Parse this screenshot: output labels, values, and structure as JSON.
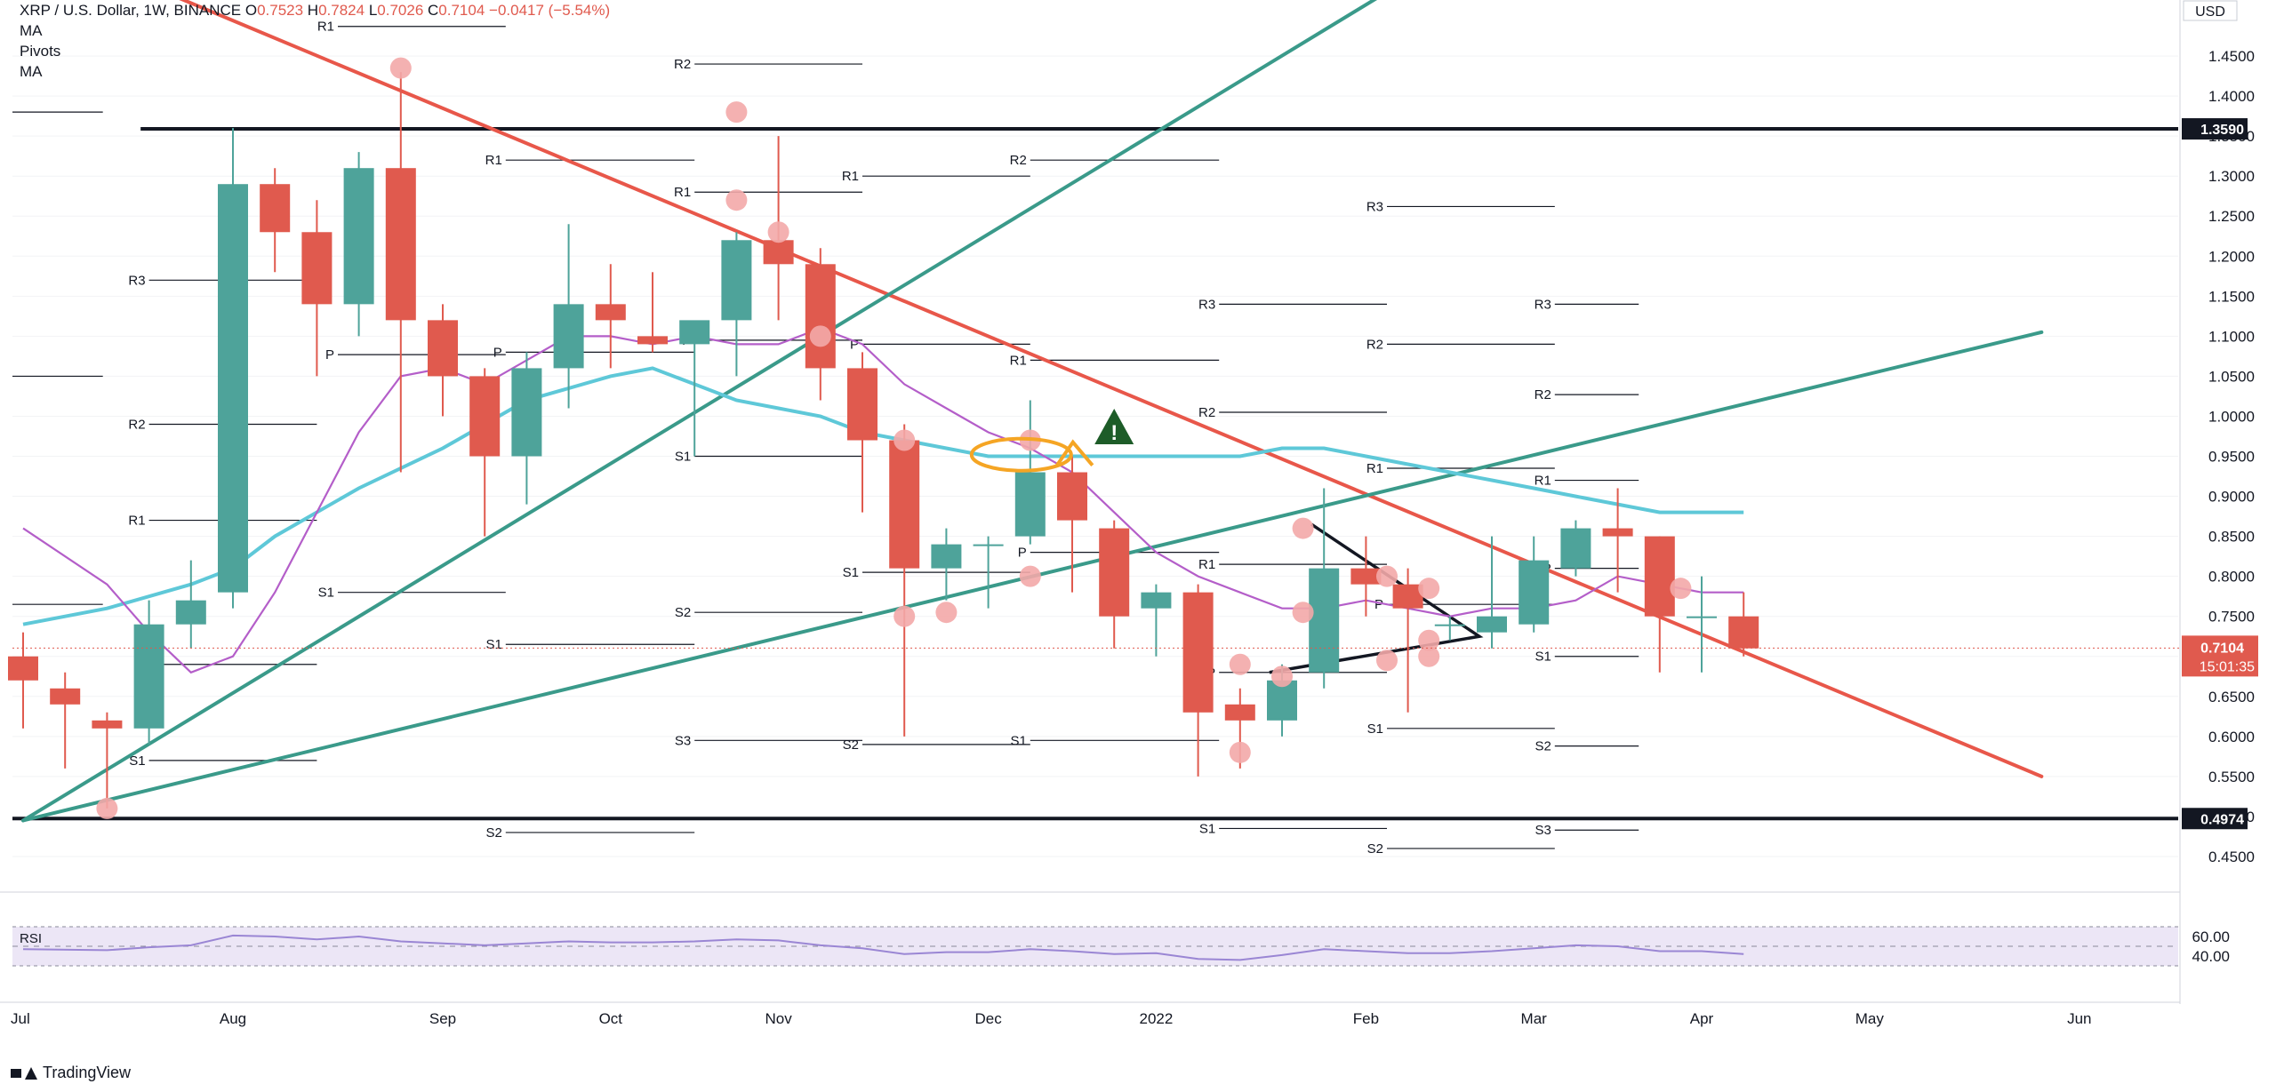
{
  "header": {
    "symbol": "XRP / U.S. Dollar, 1W, BINANCE",
    "open_label": "O",
    "open": "0.7523",
    "high_label": "H",
    "high": "0.7824",
    "low_label": "L",
    "low": "0.7026",
    "close_label": "C",
    "close": "0.7104",
    "change": "−0.0417 (−5.54%)",
    "indicators": [
      "MA",
      "Pivots",
      "MA"
    ]
  },
  "currency_button": "USD",
  "brand": "TradingView",
  "colors": {
    "up": "#4ea39a",
    "down": "#e05a4e",
    "ma_fast": "#b45ec9",
    "ma_slow": "#5ec8d8",
    "trend_red": "#e8574a",
    "trend_green": "#3a9a8a",
    "rsi": "#9a86d4",
    "rsi_bg": "#ece6f6",
    "marker": "#f3a8a8",
    "annotation": "#f5a524",
    "warning": "#1d5c28"
  },
  "chart_data": {
    "type": "candlestick",
    "y_axis": {
      "min": 0.41,
      "max": 1.52,
      "scale": "linear",
      "ticks": [
        "1.4500",
        "1.4000",
        "1.3500",
        "1.3000",
        "1.2500",
        "1.2000",
        "1.1500",
        "1.1000",
        "1.0500",
        "1.0000",
        "0.9500",
        "0.9000",
        "0.8500",
        "0.8000",
        "0.7500",
        "0.7000",
        "0.6500",
        "0.6000",
        "0.5500",
        "0.5000",
        "0.4500"
      ],
      "tick_values": [
        1.45,
        1.4,
        1.35,
        1.3,
        1.25,
        1.2,
        1.15,
        1.1,
        1.05,
        1.0,
        0.95,
        0.9,
        0.85,
        0.8,
        0.75,
        0.7,
        0.65,
        0.6,
        0.55,
        0.5,
        0.45
      ]
    },
    "x_axis": {
      "labels": [
        "Jul",
        "Aug",
        "Sep",
        "Oct",
        "Nov",
        "Dec",
        "2022",
        "Feb",
        "Mar",
        "Apr",
        "May",
        "Jun"
      ],
      "label_weeks": [
        0,
        5,
        10,
        14,
        18,
        23,
        27,
        32,
        36,
        40,
        44,
        49
      ]
    },
    "candles": [
      {
        "o": 0.7,
        "h": 0.73,
        "l": 0.61,
        "c": 0.67
      },
      {
        "o": 0.66,
        "h": 0.68,
        "l": 0.56,
        "c": 0.64
      },
      {
        "o": 0.62,
        "h": 0.63,
        "l": 0.51,
        "c": 0.61
      },
      {
        "o": 0.61,
        "h": 0.77,
        "l": 0.59,
        "c": 0.74
      },
      {
        "o": 0.74,
        "h": 0.82,
        "l": 0.71,
        "c": 0.77
      },
      {
        "o": 0.78,
        "h": 1.36,
        "l": 0.76,
        "c": 1.29
      },
      {
        "o": 1.29,
        "h": 1.31,
        "l": 1.18,
        "c": 1.23
      },
      {
        "o": 1.23,
        "h": 1.27,
        "l": 1.05,
        "c": 1.14
      },
      {
        "o": 1.14,
        "h": 1.33,
        "l": 1.1,
        "c": 1.31
      },
      {
        "o": 1.31,
        "h": 1.43,
        "l": 0.93,
        "c": 1.12
      },
      {
        "o": 1.12,
        "h": 1.14,
        "l": 1.0,
        "c": 1.05
      },
      {
        "o": 1.05,
        "h": 1.06,
        "l": 0.85,
        "c": 0.95
      },
      {
        "o": 0.95,
        "h": 1.08,
        "l": 0.89,
        "c": 1.06
      },
      {
        "o": 1.06,
        "h": 1.24,
        "l": 1.01,
        "c": 1.14
      },
      {
        "o": 1.14,
        "h": 1.19,
        "l": 1.06,
        "c": 1.12
      },
      {
        "o": 1.1,
        "h": 1.18,
        "l": 1.08,
        "c": 1.09
      },
      {
        "o": 1.09,
        "h": 1.11,
        "l": 0.95,
        "c": 1.12
      },
      {
        "o": 1.12,
        "h": 1.23,
        "l": 1.05,
        "c": 1.22
      },
      {
        "o": 1.22,
        "h": 1.35,
        "l": 1.12,
        "c": 1.19
      },
      {
        "o": 1.19,
        "h": 1.21,
        "l": 1.02,
        "c": 1.06
      },
      {
        "o": 1.06,
        "h": 1.08,
        "l": 0.88,
        "c": 0.97
      },
      {
        "o": 0.97,
        "h": 0.99,
        "l": 0.6,
        "c": 0.81
      },
      {
        "o": 0.81,
        "h": 0.86,
        "l": 0.77,
        "c": 0.84
      },
      {
        "o": 0.84,
        "h": 0.85,
        "l": 0.76,
        "c": 0.84
      },
      {
        "o": 0.85,
        "h": 1.02,
        "l": 0.84,
        "c": 0.93
      },
      {
        "o": 0.93,
        "h": 0.95,
        "l": 0.78,
        "c": 0.87
      },
      {
        "o": 0.86,
        "h": 0.87,
        "l": 0.71,
        "c": 0.75
      },
      {
        "o": 0.76,
        "h": 0.79,
        "l": 0.7,
        "c": 0.78
      },
      {
        "o": 0.78,
        "h": 0.79,
        "l": 0.55,
        "c": 0.63
      },
      {
        "o": 0.64,
        "h": 0.66,
        "l": 0.56,
        "c": 0.62
      },
      {
        "o": 0.62,
        "h": 0.69,
        "l": 0.6,
        "c": 0.67
      },
      {
        "o": 0.68,
        "h": 0.91,
        "l": 0.66,
        "c": 0.81
      },
      {
        "o": 0.81,
        "h": 0.85,
        "l": 0.75,
        "c": 0.79
      },
      {
        "o": 0.79,
        "h": 0.81,
        "l": 0.63,
        "c": 0.76
      },
      {
        "o": 0.74,
        "h": 0.75,
        "l": 0.72,
        "c": 0.74
      },
      {
        "o": 0.73,
        "h": 0.85,
        "l": 0.71,
        "c": 0.75
      },
      {
        "o": 0.74,
        "h": 0.85,
        "l": 0.73,
        "c": 0.82
      },
      {
        "o": 0.81,
        "h": 0.87,
        "l": 0.8,
        "c": 0.86
      },
      {
        "o": 0.86,
        "h": 0.91,
        "l": 0.78,
        "c": 0.85
      },
      {
        "o": 0.85,
        "h": 0.85,
        "l": 0.68,
        "c": 0.75
      },
      {
        "o": 0.75,
        "h": 0.8,
        "l": 0.68,
        "c": 0.75
      },
      {
        "o": 0.75,
        "h": 0.78,
        "l": 0.7,
        "c": 0.71
      }
    ],
    "ma_fast": [
      [
        0,
        0.86
      ],
      [
        2,
        0.79
      ],
      [
        3,
        0.73
      ],
      [
        4,
        0.68
      ],
      [
        5,
        0.7
      ],
      [
        6,
        0.78
      ],
      [
        7,
        0.88
      ],
      [
        8,
        0.98
      ],
      [
        9,
        1.05
      ],
      [
        10,
        1.06
      ],
      [
        11,
        1.04
      ],
      [
        12,
        1.07
      ],
      [
        13,
        1.1
      ],
      [
        14,
        1.1
      ],
      [
        15,
        1.09
      ],
      [
        16,
        1.1
      ],
      [
        17,
        1.09
      ],
      [
        18,
        1.09
      ],
      [
        19,
        1.11
      ],
      [
        20,
        1.09
      ],
      [
        21,
        1.04
      ],
      [
        22,
        1.01
      ],
      [
        23,
        0.98
      ],
      [
        24,
        0.96
      ],
      [
        25,
        0.93
      ],
      [
        26,
        0.88
      ],
      [
        27,
        0.83
      ],
      [
        28,
        0.8
      ],
      [
        29,
        0.78
      ],
      [
        30,
        0.76
      ],
      [
        31,
        0.76
      ],
      [
        32,
        0.77
      ],
      [
        33,
        0.76
      ],
      [
        34,
        0.75
      ],
      [
        35,
        0.76
      ],
      [
        36,
        0.76
      ],
      [
        37,
        0.77
      ],
      [
        38,
        0.8
      ],
      [
        39,
        0.79
      ],
      [
        40,
        0.78
      ],
      [
        41,
        0.78
      ]
    ],
    "ma_slow": [
      [
        0,
        0.74
      ],
      [
        2,
        0.76
      ],
      [
        4,
        0.79
      ],
      [
        5,
        0.81
      ],
      [
        6,
        0.85
      ],
      [
        8,
        0.91
      ],
      [
        10,
        0.96
      ],
      [
        12,
        1.02
      ],
      [
        14,
        1.05
      ],
      [
        15,
        1.06
      ],
      [
        16,
        1.04
      ],
      [
        17,
        1.02
      ],
      [
        18,
        1.01
      ],
      [
        19,
        1.0
      ],
      [
        20,
        0.98
      ],
      [
        21,
        0.97
      ],
      [
        22,
        0.96
      ],
      [
        23,
        0.95
      ],
      [
        24,
        0.95
      ],
      [
        25,
        0.95
      ],
      [
        26,
        0.95
      ],
      [
        27,
        0.95
      ],
      [
        28,
        0.95
      ],
      [
        29,
        0.95
      ],
      [
        30,
        0.96
      ],
      [
        31,
        0.96
      ],
      [
        32,
        0.95
      ],
      [
        33,
        0.94
      ],
      [
        34,
        0.93
      ],
      [
        35,
        0.92
      ],
      [
        36,
        0.91
      ],
      [
        37,
        0.9
      ],
      [
        38,
        0.89
      ],
      [
        39,
        0.88
      ],
      [
        40,
        0.88
      ],
      [
        41,
        0.88
      ]
    ],
    "horizontal_levels": [
      {
        "value": 1.359,
        "label": "1.3590"
      },
      {
        "value": 0.4974,
        "label": "0.4974"
      }
    ],
    "last_price": {
      "value": "0.7104",
      "countdown": "15:01:35"
    },
    "trend_lines": [
      {
        "color": "trend_red",
        "from": [
          2,
          1.56
        ],
        "to": [
          48.1,
          0.55
        ]
      },
      {
        "color": "trend_green",
        "from": [
          0,
          0.495
        ],
        "to": [
          32.5,
          1.53
        ]
      },
      {
        "color": "trend_green",
        "from": [
          0,
          0.495
        ],
        "to": [
          48.1,
          1.105
        ]
      }
    ],
    "triangle": [
      [
        30.7,
        0.865
      ],
      [
        34.7,
        0.725
      ],
      [
        29.7,
        0.68
      ]
    ],
    "pivots": [
      {
        "label": "R1",
        "x": 7.5,
        "x2": 11.5,
        "y": 1.487
      },
      {
        "label": "R3",
        "x": 3,
        "x2": 7,
        "y": 1.17
      },
      {
        "label": "P",
        "x": 7.5,
        "x2": 11.5,
        "y": 1.077
      },
      {
        "label": "R2",
        "x": 3,
        "x2": 7,
        "y": 0.99
      },
      {
        "label": "R1",
        "x": 3,
        "x2": 7,
        "y": 0.87
      },
      {
        "label": "S1",
        "x": 7.5,
        "x2": 11.5,
        "y": 0.78
      },
      {
        "label": "P",
        "x": 3,
        "x2": 7,
        "y": 0.69
      },
      {
        "label": "S1",
        "x": 3,
        "x2": 7,
        "y": 0.57
      },
      {
        "label": "R2",
        "x": 16,
        "x2": 20,
        "y": 1.44
      },
      {
        "label": "R1",
        "x": 11.5,
        "x2": 16,
        "y": 1.32
      },
      {
        "label": "R1",
        "x": 16,
        "x2": 20,
        "y": 1.28
      },
      {
        "label": "P",
        "x": 11.5,
        "x2": 16,
        "y": 1.08
      },
      {
        "label": "P",
        "x": 16,
        "x2": 20,
        "y": 1.095
      },
      {
        "label": "S1",
        "x": 16,
        "x2": 20,
        "y": 0.95
      },
      {
        "label": "S1",
        "x": 11.5,
        "x2": 16,
        "y": 0.715
      },
      {
        "label": "S2",
        "x": 16,
        "x2": 20,
        "y": 0.755
      },
      {
        "label": "S3",
        "x": 16,
        "x2": 20,
        "y": 0.595
      },
      {
        "label": "S2",
        "x": 11.5,
        "x2": 16,
        "y": 0.48
      },
      {
        "label": "R1",
        "x": 20,
        "x2": 24,
        "y": 1.3
      },
      {
        "label": "P",
        "x": 20,
        "x2": 24,
        "y": 1.09
      },
      {
        "label": "S1",
        "x": 20,
        "x2": 24,
        "y": 0.805
      },
      {
        "label": "S2",
        "x": 20,
        "x2": 24,
        "y": 0.59
      },
      {
        "label": "R2",
        "x": 24,
        "x2": 28.5,
        "y": 1.32
      },
      {
        "label": "R1",
        "x": 24,
        "x2": 28.5,
        "y": 1.07
      },
      {
        "label": "P",
        "x": 24,
        "x2": 28.5,
        "y": 0.83
      },
      {
        "label": "S1",
        "x": 24,
        "x2": 28.5,
        "y": 0.595
      },
      {
        "label": "R3",
        "x": 28.5,
        "x2": 32.5,
        "y": 1.14
      },
      {
        "label": "R2",
        "x": 28.5,
        "x2": 32.5,
        "y": 1.005
      },
      {
        "label": "R1",
        "x": 28.5,
        "x2": 32.5,
        "y": 0.815
      },
      {
        "label": "P",
        "x": 28.5,
        "x2": 32.5,
        "y": 0.68
      },
      {
        "label": "S1",
        "x": 28.5,
        "x2": 32.5,
        "y": 0.485
      },
      {
        "label": "R3",
        "x": 32.5,
        "x2": 36.5,
        "y": 1.262
      },
      {
        "label": "R1",
        "x": 32.5,
        "x2": 36.5,
        "y": 0.935
      },
      {
        "label": "P",
        "x": 32.5,
        "x2": 36.5,
        "y": 0.765
      },
      {
        "label": "S1",
        "x": 32.5,
        "x2": 36.5,
        "y": 0.61
      },
      {
        "label": "S2",
        "x": 32.5,
        "x2": 36.5,
        "y": 0.46
      },
      {
        "label": "R2",
        "x": 32.5,
        "x2": 36.5,
        "y": 1.09
      },
      {
        "label": "R3",
        "x": 36.5,
        "x2": 38.5,
        "y": 1.14
      },
      {
        "label": "R2",
        "x": 36.5,
        "x2": 38.5,
        "y": 1.027
      },
      {
        "label": "R1",
        "x": 36.5,
        "x2": 38.5,
        "y": 0.92
      },
      {
        "label": "P",
        "x": 36.5,
        "x2": 38.5,
        "y": 0.81
      },
      {
        "label": "S1",
        "x": 36.5,
        "x2": 38.5,
        "y": 0.7
      },
      {
        "label": "S2",
        "x": 36.5,
        "x2": 38.5,
        "y": 0.588
      },
      {
        "label": "S3",
        "x": 36.5,
        "x2": 38.5,
        "y": 0.483
      }
    ],
    "left_stub_levels": [
      1.38,
      1.05,
      0.765
    ],
    "markers": [
      [
        2,
        0.51
      ],
      [
        9,
        1.435
      ],
      [
        17,
        1.38
      ],
      [
        17,
        1.27
      ],
      [
        18,
        1.23
      ],
      [
        19,
        1.1
      ],
      [
        21,
        0.97
      ],
      [
        21,
        0.75
      ],
      [
        22,
        0.755
      ],
      [
        24,
        0.97
      ],
      [
        24,
        0.8
      ],
      [
        29,
        0.58
      ],
      [
        29,
        0.69
      ],
      [
        30,
        0.675
      ],
      [
        30.5,
        0.86
      ],
      [
        30.5,
        0.755
      ],
      [
        32.5,
        0.8
      ],
      [
        32.5,
        0.695
      ],
      [
        33.5,
        0.785
      ],
      [
        33.5,
        0.7
      ],
      [
        33.5,
        0.72
      ],
      [
        39.5,
        0.785
      ]
    ],
    "annotation_ellipse": {
      "x": 24,
      "y": 0.952,
      "label": ""
    },
    "warning_marker": {
      "x": 26,
      "y": 0.985,
      "symbol": "!"
    },
    "rsi": {
      "label": "RSI",
      "ticks": [
        "60.00",
        "40.00"
      ],
      "tick_values": [
        60,
        40
      ],
      "upper_band": 70,
      "lower_band": 30,
      "mid": 50,
      "values": [
        [
          0,
          47
        ],
        [
          2,
          46
        ],
        [
          3,
          49
        ],
        [
          4,
          51
        ],
        [
          5,
          61
        ],
        [
          6,
          60
        ],
        [
          7,
          57
        ],
        [
          8,
          60
        ],
        [
          9,
          55
        ],
        [
          10,
          53
        ],
        [
          11,
          51
        ],
        [
          12,
          53
        ],
        [
          13,
          55
        ],
        [
          14,
          54
        ],
        [
          15,
          54
        ],
        [
          16,
          55
        ],
        [
          17,
          57
        ],
        [
          18,
          56
        ],
        [
          19,
          51
        ],
        [
          20,
          48
        ],
        [
          21,
          42
        ],
        [
          22,
          44
        ],
        [
          23,
          44
        ],
        [
          24,
          47
        ],
        [
          25,
          45
        ],
        [
          26,
          42
        ],
        [
          27,
          43
        ],
        [
          28,
          37
        ],
        [
          29,
          36
        ],
        [
          30,
          41
        ],
        [
          31,
          47
        ],
        [
          32,
          45
        ],
        [
          33,
          43
        ],
        [
          34,
          43
        ],
        [
          35,
          45
        ],
        [
          36,
          48
        ],
        [
          37,
          51
        ],
        [
          38,
          50
        ],
        [
          39,
          45
        ],
        [
          40,
          45
        ],
        [
          41,
          42
        ]
      ]
    }
  }
}
